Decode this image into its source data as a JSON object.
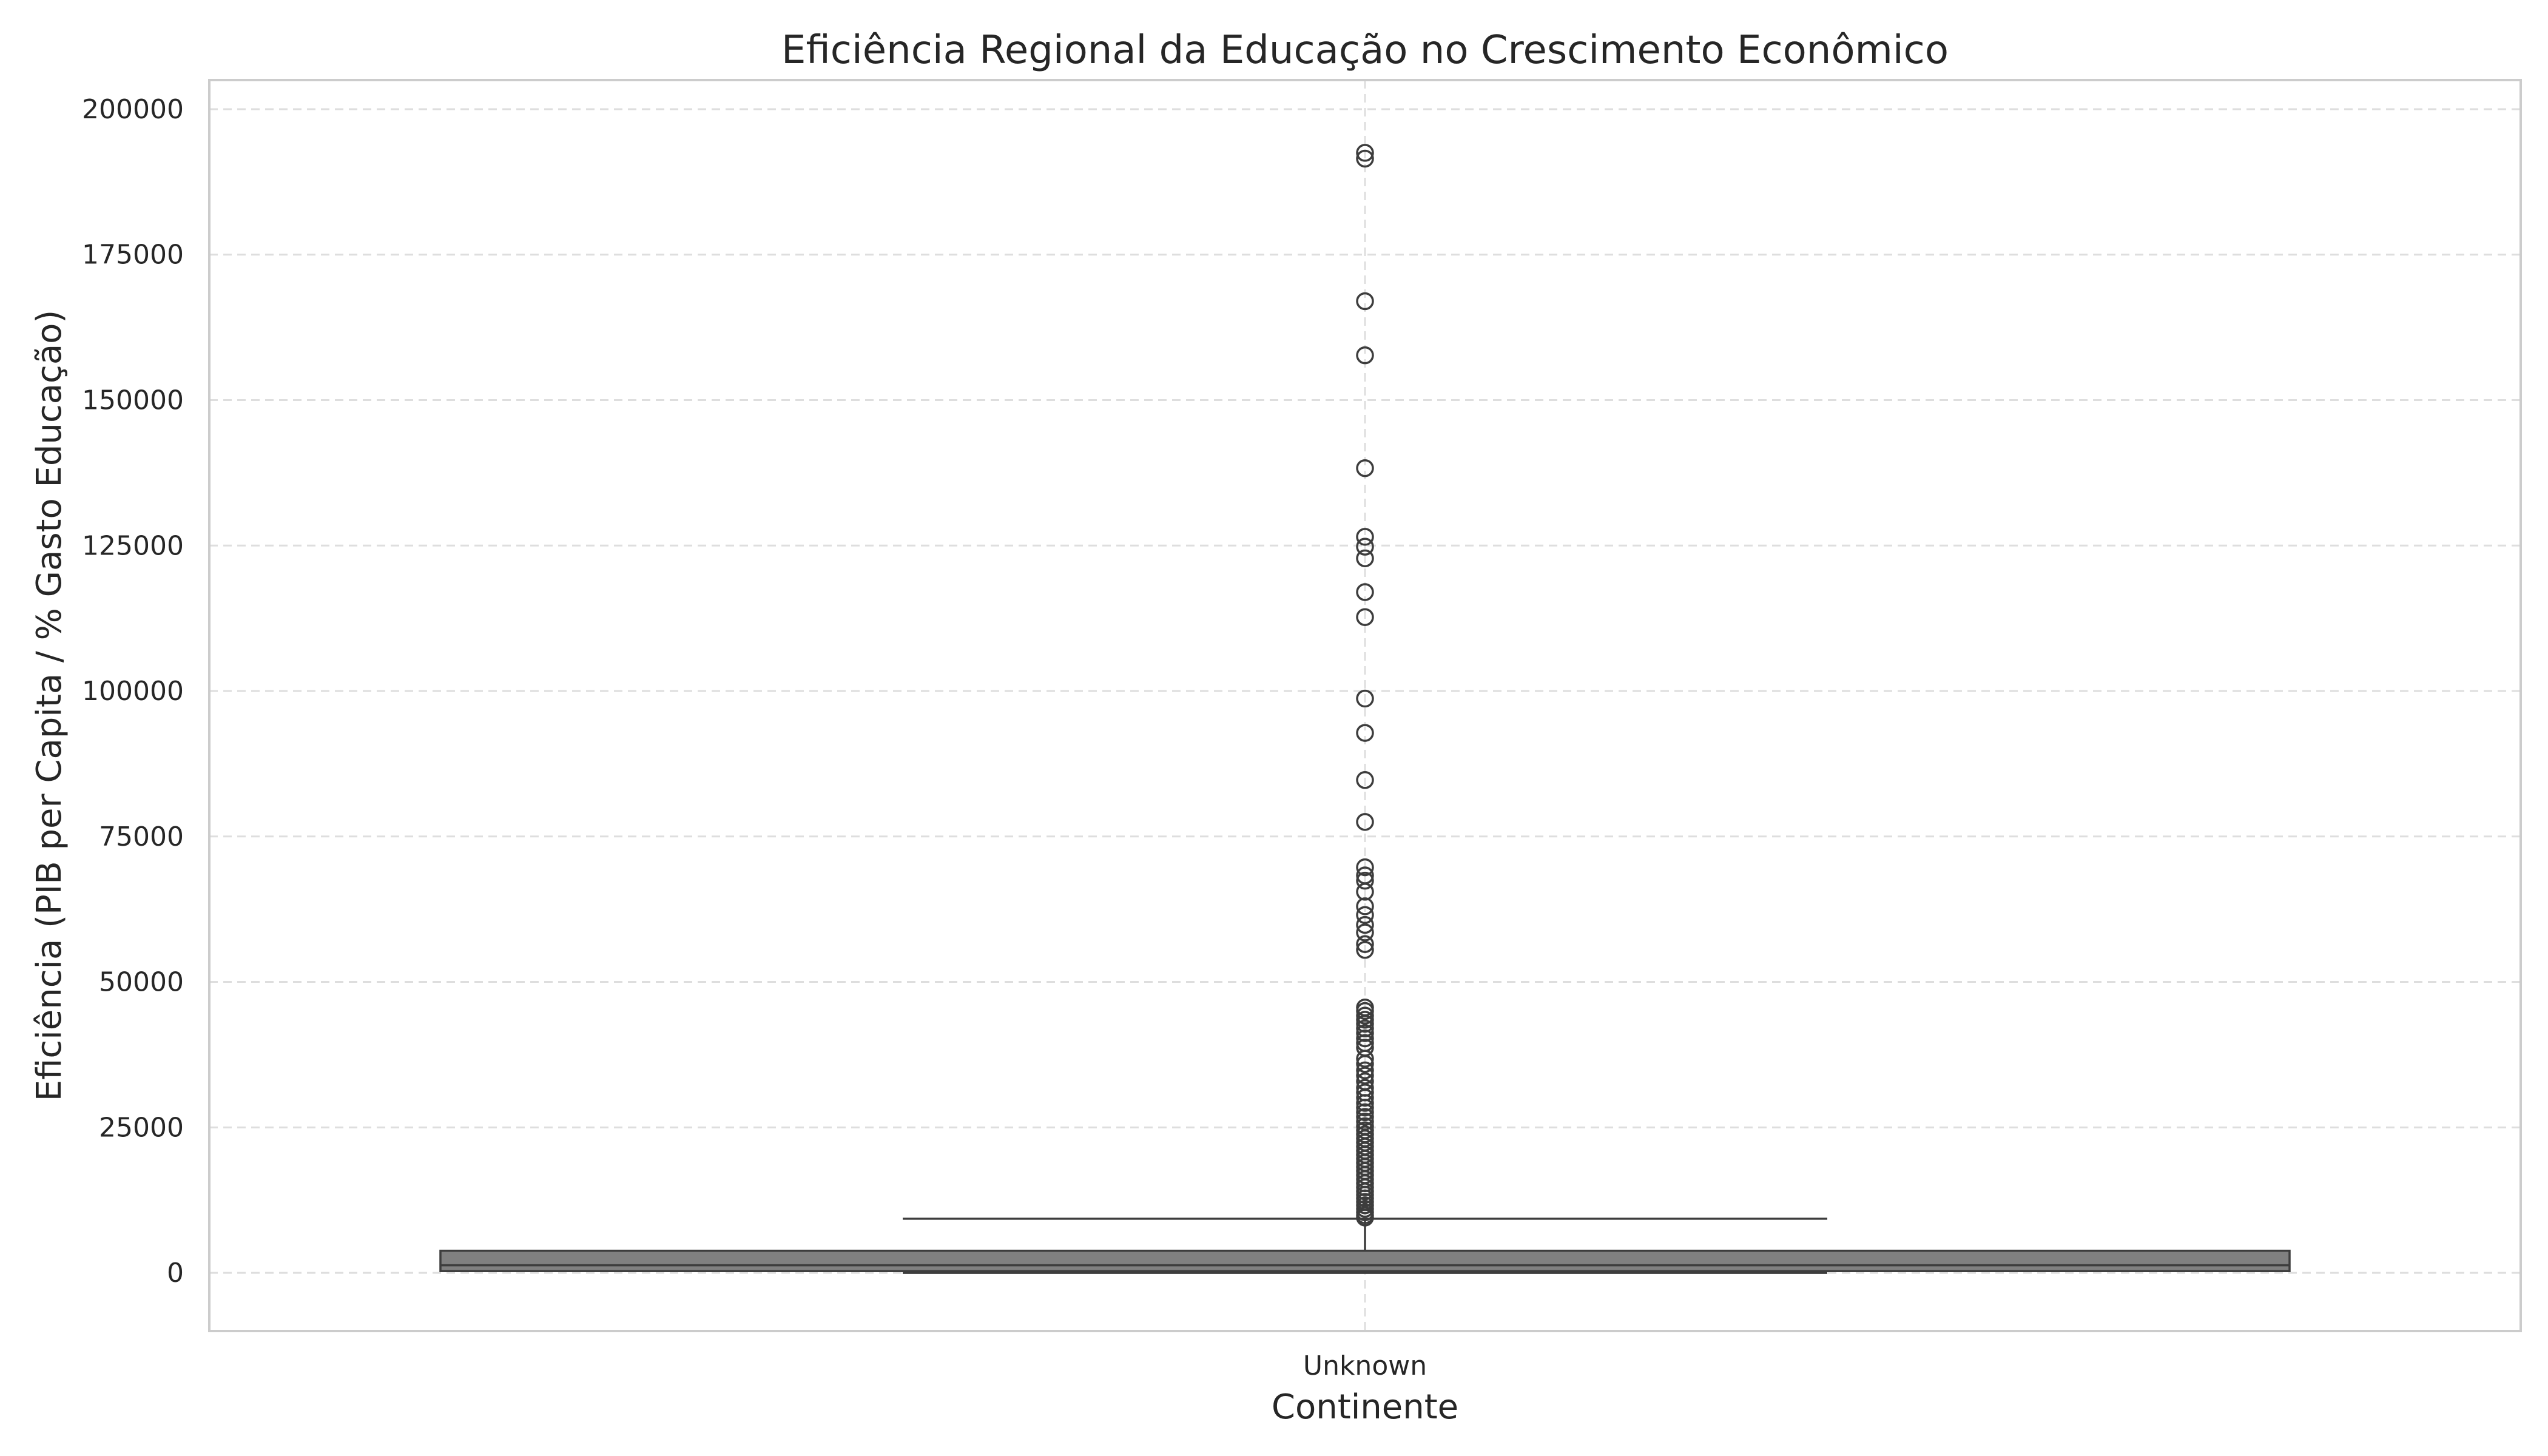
{
  "chart_data": {
    "type": "box",
    "title": "Eficiência Regional da Educação no Crescimento Econômico",
    "xlabel": "Continente",
    "ylabel": "Eficiência (PIB per Capita / % Gasto Educação)",
    "categories": [
      "Unknown"
    ],
    "ylim": [
      -10000,
      205000
    ],
    "yticks": [
      0,
      25000,
      50000,
      75000,
      100000,
      125000,
      150000,
      175000,
      200000
    ],
    "ytick_labels": [
      "0",
      "25000",
      "50000",
      "75000",
      "100000",
      "125000",
      "150000",
      "175000",
      "200000"
    ],
    "grid": true,
    "box_color": "#808080",
    "boxes": [
      {
        "category": "Unknown",
        "whisker_low": 0,
        "q1": 300,
        "median": 1300,
        "q3": 3800,
        "whisker_high": 9300,
        "outliers": [
          192500,
          191500,
          167000,
          157700,
          138300,
          126500,
          124800,
          122800,
          117000,
          112700,
          98700,
          92800,
          84700,
          77500,
          69700,
          68300,
          67400,
          65500,
          63000,
          61500,
          59800,
          58500,
          56500,
          55500,
          45600,
          45000,
          44200,
          43500,
          42800,
          42000,
          41200,
          40300,
          39500,
          38700,
          36800,
          35900,
          34800,
          33900,
          32900,
          31800,
          31000,
          30100,
          29200,
          28400,
          27600,
          26800,
          26000,
          25200,
          24500,
          23800,
          23100,
          22400,
          21700,
          21000,
          20300,
          19600,
          18900,
          18200,
          17500,
          16800,
          16100,
          15400,
          14700,
          14000,
          13400,
          12800,
          12200,
          11600,
          11000,
          10400,
          9900,
          9500
        ]
      }
    ]
  }
}
